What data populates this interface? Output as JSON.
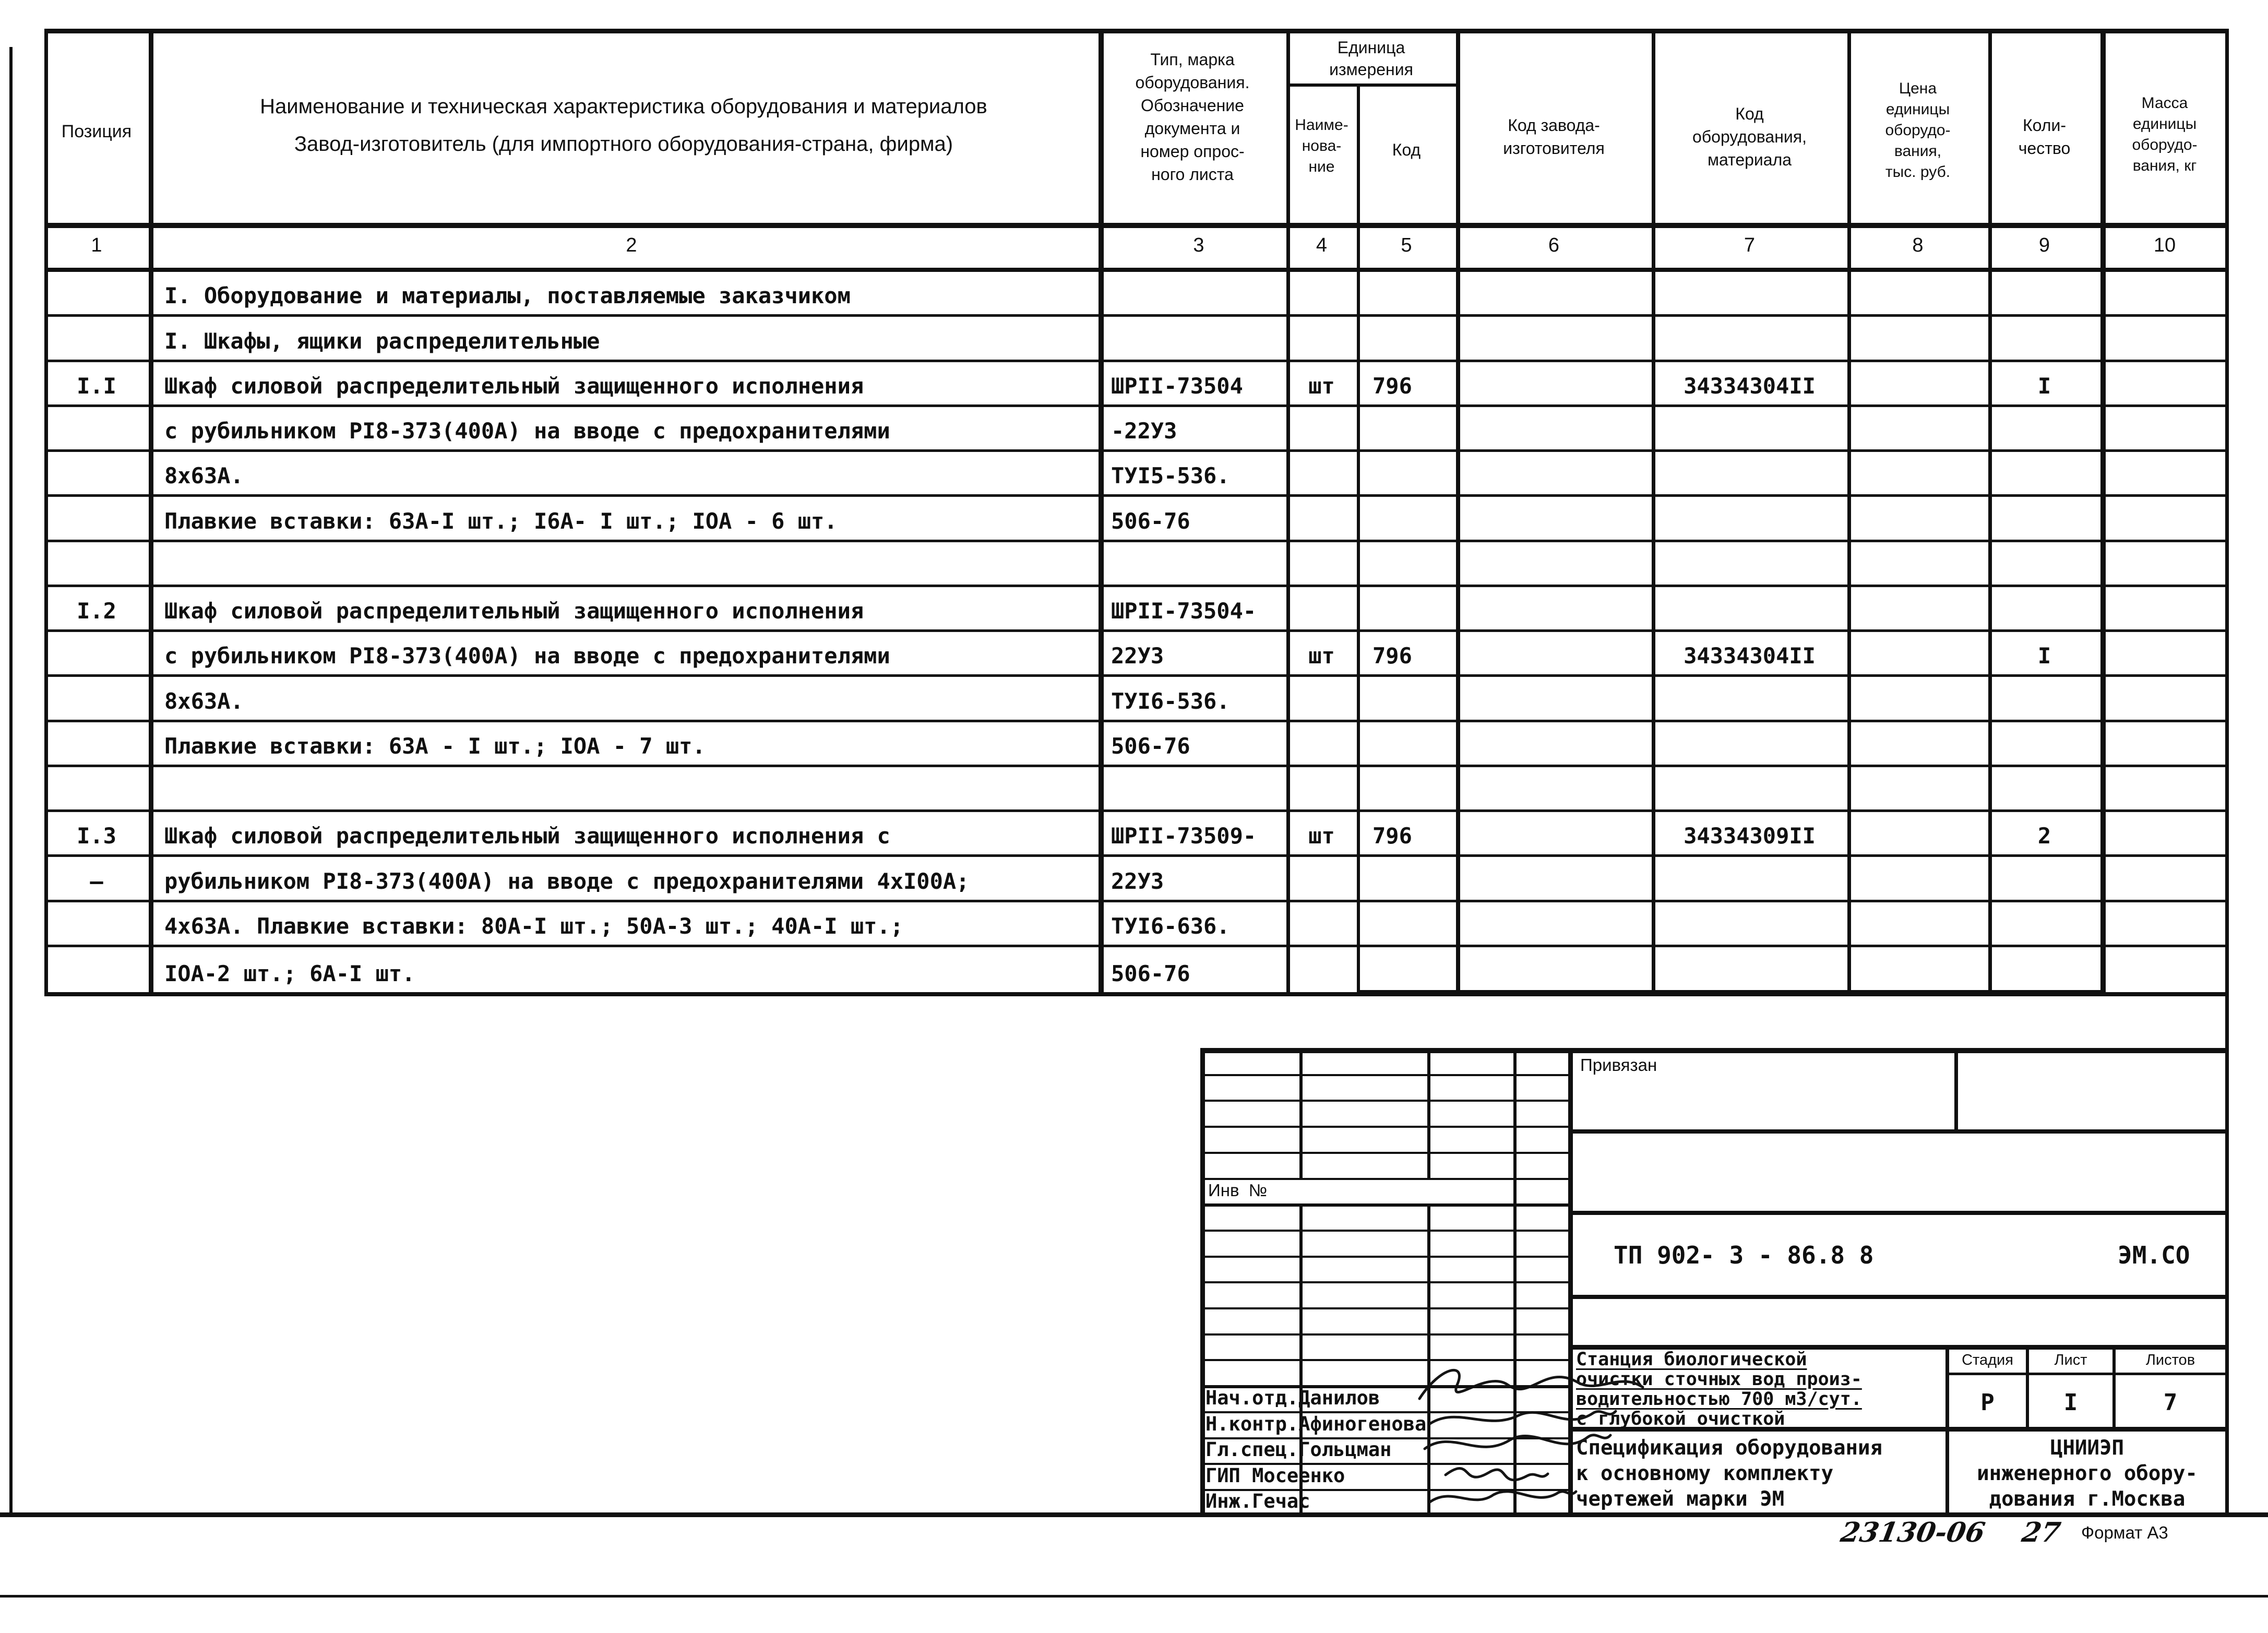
{
  "page": {
    "background": "#ffffff",
    "ink": "#101010"
  },
  "table": {
    "header": {
      "position": "Позиция",
      "name": "Наименование и техническая характеристика  оборудования и материалов\nЗавод-изготовитель  (для импортного оборудования-страна, фирма)",
      "type_mark": "Тип, марка\nоборудования.\nОбозначение\nдокумента и\nномер опрос-\nного листа",
      "unit_group": "Единица\nизмерения",
      "unit_name": "Наиме-\nнова-\nние",
      "unit_code": "Код",
      "factory_code": "Код завода-\nизготовителя",
      "equip_code": "Код\nоборудования,\nматериала",
      "price": "Цена\nединицы\nоборудо-\nвания,\nтыс. руб.",
      "quantity": "Коли-\nчество",
      "mass": "Масса\nединицы\nоборудо-\nвания, кг"
    },
    "column_numbers": [
      "1",
      "2",
      "3",
      "4",
      "5",
      "6",
      "7",
      "8",
      "9",
      "10"
    ],
    "rows": [
      {
        "pos": "",
        "name": "I. Оборудование и материалы, поставляемые заказчиком",
        "type": "",
        "unit": "",
        "unit_code": "",
        "factory": "",
        "equip": "",
        "price": "",
        "qty": "",
        "mass": ""
      },
      {
        "pos": "",
        "name": "I. Шкафы, ящики  распределительные",
        "type": "",
        "unit": "",
        "unit_code": "",
        "factory": "",
        "equip": "",
        "price": "",
        "qty": "",
        "mass": ""
      },
      {
        "pos": "I.I",
        "name": "Шкаф силовой распределительный защищенного исполнения",
        "type": "ШРII-73504",
        "unit": "шт",
        "unit_code": "796",
        "factory": "",
        "equip": "34334304II",
        "price": "",
        "qty": "I",
        "mass": ""
      },
      {
        "pos": "",
        "name": "с рубильником РI8-373(400А) на вводе с предохранителями",
        "type": "-22У3",
        "unit": "",
        "unit_code": "",
        "factory": "",
        "equip": "",
        "price": "",
        "qty": "",
        "mass": ""
      },
      {
        "pos": "",
        "name": "8х63А.",
        "type": "ТУI5-536.",
        "unit": "",
        "unit_code": "",
        "factory": "",
        "equip": "",
        "price": "",
        "qty": "",
        "mass": ""
      },
      {
        "pos": "",
        "name": "Плавкие вставки: 63А-I шт.; I6А- I шт.; IОА - 6 шт.",
        "type": "506-76",
        "unit": "",
        "unit_code": "",
        "factory": "",
        "equip": "",
        "price": "",
        "qty": "",
        "mass": ""
      },
      {
        "pos": "",
        "name": "",
        "type": "",
        "unit": "",
        "unit_code": "",
        "factory": "",
        "equip": "",
        "price": "",
        "qty": "",
        "mass": ""
      },
      {
        "pos": "I.2",
        "name": "Шкаф силовой распределительный защищенного исполнения",
        "type": "ШРII-73504-",
        "unit": "",
        "unit_code": "",
        "factory": "",
        "equip": "",
        "price": "",
        "qty": "",
        "mass": ""
      },
      {
        "pos": "",
        "name": "с рубильником РI8-373(400А) на вводе с предохранителями",
        "type": "22У3",
        "unit": "шт",
        "unit_code": "796",
        "factory": "",
        "equip": "34334304II",
        "price": "",
        "qty": "I",
        "mass": ""
      },
      {
        "pos": "",
        "name": "8х63А.",
        "type": "ТУI6-536.",
        "unit": "",
        "unit_code": "",
        "factory": "",
        "equip": "",
        "price": "",
        "qty": "",
        "mass": ""
      },
      {
        "pos": "",
        "name": "Плавкие вставки: 63А - I шт.; IОА - 7 шт.",
        "type": "506-76",
        "unit": "",
        "unit_code": "",
        "factory": "",
        "equip": "",
        "price": "",
        "qty": "",
        "mass": ""
      },
      {
        "pos": "",
        "name": "",
        "type": "",
        "unit": "",
        "unit_code": "",
        "factory": "",
        "equip": "",
        "price": "",
        "qty": "",
        "mass": ""
      },
      {
        "pos": "I.3",
        "name": "Шкаф силовой распределительный защищенного исполнения с",
        "type": "ШРII-73509-",
        "unit": "шт",
        "unit_code": "796",
        "factory": "",
        "equip": "34334309II",
        "price": "",
        "qty": "2",
        "mass": ""
      },
      {
        "pos": "–",
        "name": "рубильником РI8-373(400А) на вводе с предохранителями 4хI00А;",
        "type": "22У3",
        "unit": "",
        "unit_code": "",
        "factory": "",
        "equip": "",
        "price": "",
        "qty": "",
        "mass": ""
      },
      {
        "pos": "",
        "name": "4х63А. Плавкие вставки: 80А-I шт.; 50А-3 шт.; 40А-I шт.;",
        "type": "ТУI6-636.",
        "unit": "",
        "unit_code": "",
        "factory": "",
        "equip": "",
        "price": "",
        "qty": "",
        "mass": ""
      },
      {
        "pos": "",
        "name": "IОА-2 шт.; 6А-I шт.",
        "type": "506-76",
        "unit": "",
        "unit_code": "",
        "factory": "",
        "equip": "",
        "price": "",
        "qty": "",
        "mass": ""
      }
    ]
  },
  "title_block": {
    "privyazan": "Привязан",
    "inv_no": "Инв  №",
    "doc_number": "ТП 902- 3 - 86.8 8",
    "doc_code": "ЭМ.СО",
    "project": "Станция биологической\nочистки сточных вод произ-\nводительностью 700 м3/сут.\nс глубокой очисткой",
    "stage_label": "Стадия",
    "sheet_label": "Лист",
    "sheets_label": "Листов",
    "stage": "Р",
    "sheet": "I",
    "sheets": "7",
    "doc_title": "Спецификация оборудования\nк основному комплекту\nчертежей марки ЭМ",
    "organization": "ЦНИИЭП\nинженерного обору-\nдования г.Москва",
    "signers": [
      {
        "role": "Нач.отд.Данилов"
      },
      {
        "role": "Н.контр.Афиногенова"
      },
      {
        "role": "Гл.спец.Гольцман"
      },
      {
        "role": "ГИП Мосеенко"
      },
      {
        "role": "Инж.Гечас"
      }
    ],
    "footer_handwritten": "23130-06    27",
    "format_label": "Формат А3"
  }
}
